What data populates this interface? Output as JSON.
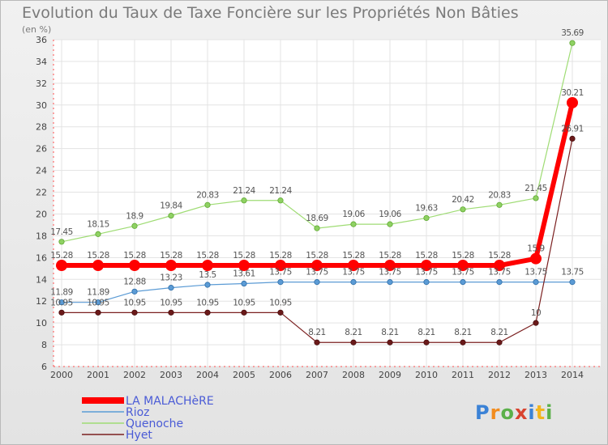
{
  "chart_data": {
    "type": "line",
    "title": "Evolution du Taux de Taxe Foncière sur les Propriétés Non Bâties",
    "unit_label": "(en %)",
    "x": [
      "2000",
      "2001",
      "2002",
      "2003",
      "2004",
      "2005",
      "2006",
      "2007",
      "2008",
      "2009",
      "2010",
      "2011",
      "2012",
      "2013",
      "2014"
    ],
    "ylim": [
      6,
      36
    ],
    "yticks": [
      6,
      8,
      10,
      12,
      14,
      16,
      18,
      20,
      22,
      24,
      26,
      28,
      30,
      32,
      34,
      36
    ],
    "grid": true,
    "legend_position": "bottom-left",
    "series": [
      {
        "name": "LA MALACHèRE",
        "color": "#ff0000",
        "values": [
          15.28,
          15.28,
          15.28,
          15.28,
          15.28,
          15.28,
          15.28,
          15.28,
          15.28,
          15.28,
          15.28,
          15.28,
          15.28,
          15.9,
          30.21
        ],
        "labels": [
          "15.28",
          "15.28",
          "15.28",
          "15.28",
          "15.28",
          "15.28",
          "15.28",
          "15.28",
          "15.28",
          "15.28",
          "15.28",
          "15.28",
          "15.28",
          "15.9",
          "30.21"
        ]
      },
      {
        "name": "Rioz",
        "color": "#5b9bd5",
        "values": [
          11.89,
          11.89,
          12.88,
          13.23,
          13.5,
          13.61,
          13.75,
          13.75,
          13.75,
          13.75,
          13.75,
          13.75,
          13.75,
          13.75,
          13.75
        ],
        "labels": [
          "11.89",
          "11.89",
          "12.88",
          "13.23",
          "13.5",
          "13.61",
          "13.75",
          "13.75",
          "13.75",
          "13.75",
          "13.75",
          "13.75",
          "13.75",
          "13.75",
          "13.75"
        ]
      },
      {
        "name": "Quenoche",
        "color": "#8fd163",
        "values": [
          17.45,
          18.15,
          18.9,
          19.84,
          20.83,
          21.24,
          21.24,
          18.69,
          19.06,
          19.06,
          19.63,
          20.42,
          20.83,
          21.45,
          35.69
        ],
        "labels": [
          "17.45",
          "18.15",
          "18.9",
          "19.84",
          "20.83",
          "21.24",
          "21.24",
          "18.69",
          "19.06",
          "19.06",
          "19.63",
          "20.42",
          "20.83",
          "21.45",
          "35.69"
        ]
      },
      {
        "name": "Hyet",
        "color": "#7b2020",
        "values": [
          10.95,
          10.95,
          10.95,
          10.95,
          10.95,
          10.95,
          10.95,
          8.21,
          8.21,
          8.21,
          8.21,
          8.21,
          8.21,
          10,
          26.91
        ],
        "labels": [
          "10.95",
          "10.95",
          "10.95",
          "10.95",
          "10.95",
          "10.95",
          "10.95",
          "8.21",
          "8.21",
          "8.21",
          "8.21",
          "8.21",
          "8.21",
          "10",
          "26.91"
        ]
      }
    ]
  },
  "brand": "Proxiti"
}
